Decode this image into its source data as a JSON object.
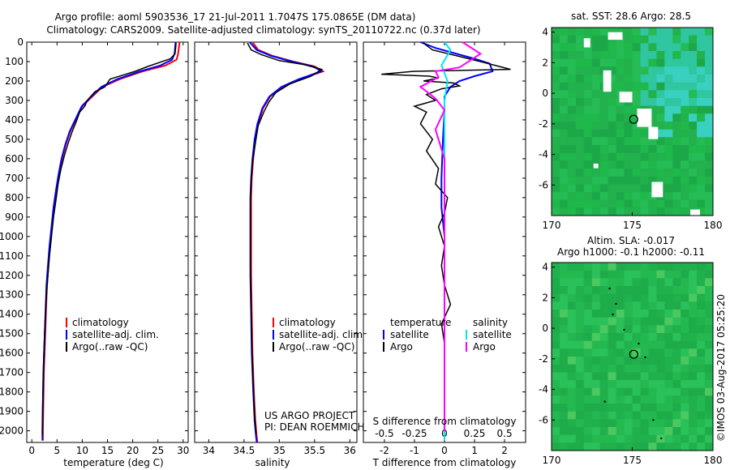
{
  "header": {
    "line1": "Argo profile: aoml 5903536_17 21-Jul-2011 1.7047S 175.0865E (DM data)",
    "line2": "Climatology: CARS2009. Satellite-adjusted climatology: synTS_20110722.nc (0.37d later)"
  },
  "colors": {
    "climatology": "#ff0000",
    "satellite": "#0000ff",
    "argo": "#000000",
    "sal_sat": "#00e5ee",
    "sal_argo": "#ff00ff",
    "map_base": "#22b14c"
  },
  "footer": {
    "project": "US ARGO PROJECT",
    "pi": "PI: DEAN ROEMMICH",
    "watermark": "©IMOS 03-Aug-2017 05:25:20"
  },
  "chart_data": [
    {
      "type": "line",
      "id": "temperature",
      "xlabel": "temperature (deg C)",
      "ylabel": "",
      "xlim": [
        -1,
        31
      ],
      "ylim": [
        2060,
        0
      ],
      "xticks": [
        0,
        5,
        10,
        15,
        20,
        25,
        30
      ],
      "yticks": [
        0,
        100,
        200,
        300,
        400,
        500,
        600,
        700,
        800,
        900,
        1000,
        1100,
        1200,
        1300,
        1400,
        1500,
        1600,
        1700,
        1800,
        1900,
        2000
      ],
      "legend": [
        "climatology",
        "satellite-adj. clim.",
        "Argo(..raw -QC)"
      ],
      "series": [
        {
          "name": "climatology",
          "color": "#ff0000",
          "x": [
            29.3,
            29.0,
            28.7,
            26.5,
            22.0,
            17.5,
            14.0,
            12.0,
            10.0,
            8.7,
            7.6,
            6.7,
            6.0,
            5.4,
            4.9,
            4.4,
            4.0,
            3.6,
            3.3,
            3.0,
            2.8,
            2.6,
            2.4,
            2.3,
            2.2,
            2.2
          ],
          "y": [
            0,
            60,
            90,
            120,
            150,
            190,
            230,
            280,
            330,
            400,
            460,
            530,
            600,
            680,
            760,
            850,
            950,
            1050,
            1150,
            1250,
            1400,
            1550,
            1700,
            1850,
            2000,
            2050
          ]
        },
        {
          "name": "satellite",
          "color": "#0000ff",
          "x": [
            28.5,
            28.3,
            27.8,
            25.5,
            21.5,
            17.0,
            13.8,
            11.8,
            9.9,
            8.6,
            7.5,
            6.6,
            5.9,
            5.3,
            4.8,
            4.3,
            3.9,
            3.5,
            3.2,
            2.9,
            2.7,
            2.5,
            2.3,
            2.2,
            2.1,
            2.1
          ],
          "y": [
            0,
            60,
            90,
            120,
            150,
            190,
            230,
            280,
            330,
            400,
            460,
            530,
            600,
            680,
            760,
            850,
            950,
            1050,
            1150,
            1250,
            1400,
            1550,
            1700,
            1850,
            2000,
            2050
          ]
        },
        {
          "name": "argo",
          "color": "#000000",
          "x": [
            28.6,
            28.4,
            27.5,
            23.0,
            20.5,
            18.0,
            15.5,
            14.5,
            12.5,
            11.0,
            10.5,
            9.5,
            8.8,
            8.0,
            7.2,
            6.5,
            5.8,
            5.2,
            4.8,
            4.3,
            3.9,
            3.5,
            3.2,
            2.9,
            2.6,
            2.4,
            2.2,
            2.1,
            2.1
          ],
          "y": [
            5,
            60,
            85,
            125,
            150,
            170,
            190,
            230,
            255,
            300,
            330,
            360,
            410,
            460,
            520,
            580,
            650,
            730,
            810,
            900,
            1000,
            1100,
            1200,
            1300,
            1450,
            1600,
            1800,
            1950,
            2020
          ]
        }
      ]
    },
    {
      "type": "line",
      "id": "salinity",
      "xlabel": "salinity",
      "ylabel": "",
      "xlim": [
        33.8,
        36.1
      ],
      "ylim": [
        2060,
        0
      ],
      "xticks": [
        34,
        34.5,
        35,
        35.5,
        36
      ],
      "legend": [
        "climatology",
        "satellite-adj. clim.",
        "Argo(..raw -QC)"
      ],
      "series": [
        {
          "name": "climatology",
          "color": "#ff0000",
          "x": [
            34.62,
            34.7,
            34.9,
            35.2,
            35.5,
            35.62,
            35.3,
            35.05,
            34.87,
            34.77,
            34.7,
            34.66,
            34.63,
            34.61,
            34.6,
            34.6,
            34.6,
            34.6,
            34.61,
            34.62,
            34.64,
            34.66,
            34.68,
            34.69
          ],
          "y": [
            0,
            40,
            70,
            100,
            125,
            150,
            190,
            230,
            280,
            340,
            420,
            500,
            600,
            700,
            800,
            900,
            1000,
            1200,
            1400,
            1600,
            1800,
            1950,
            2030,
            2060
          ]
        },
        {
          "name": "satellite",
          "color": "#0000ff",
          "x": [
            34.58,
            34.68,
            34.88,
            35.18,
            35.48,
            35.6,
            35.28,
            35.03,
            34.86,
            34.76,
            34.69,
            34.65,
            34.62,
            34.6,
            34.59,
            34.59,
            34.59,
            34.59,
            34.6,
            34.61,
            34.63,
            34.65,
            34.67,
            34.68
          ],
          "y": [
            0,
            40,
            70,
            100,
            125,
            150,
            190,
            230,
            280,
            340,
            420,
            500,
            600,
            700,
            800,
            900,
            1000,
            1200,
            1400,
            1600,
            1800,
            1950,
            2030,
            2060
          ]
        },
        {
          "name": "argo",
          "color": "#000000",
          "x": [
            34.55,
            34.6,
            34.75,
            35.0,
            35.35,
            35.6,
            35.45,
            35.15,
            34.95,
            34.85,
            34.78,
            34.7,
            34.66,
            34.62,
            34.6,
            34.59,
            34.59,
            34.59,
            34.6,
            34.61,
            34.63,
            34.65,
            34.67
          ],
          "y": [
            5,
            40,
            65,
            95,
            115,
            140,
            175,
            215,
            260,
            310,
            360,
            430,
            520,
            620,
            720,
            830,
            950,
            1150,
            1350,
            1550,
            1750,
            1920,
            2020
          ]
        }
      ]
    },
    {
      "type": "line",
      "id": "difference",
      "xlabel": "T difference from climatology",
      "xlabel2": "S difference from climatology",
      "xlim": [
        -2.7,
        2.7
      ],
      "ylim": [
        2060,
        0
      ],
      "xticks": [
        -2,
        -1,
        0,
        1,
        2
      ],
      "xticks_s": [
        -0.5,
        -0.25,
        0,
        0.25,
        0.5
      ],
      "legend_title_t": "temperature",
      "legend_title_s": "salinity",
      "legend": [
        "satellite",
        "Argo",
        "satellite",
        "Argo"
      ],
      "series": [
        {
          "name": "T satellite",
          "color": "#0000ff",
          "x": [
            -0.8,
            -0.3,
            0.4,
            1.0,
            1.5,
            1.6,
            1.0,
            0.5,
            0.2,
            0.0,
            0.0,
            -0.05,
            -0.1,
            -0.1,
            0.0,
            0.0,
            0.0,
            0.0,
            0.0,
            0.0
          ],
          "y": [
            0,
            30,
            60,
            85,
            110,
            150,
            175,
            200,
            230,
            280,
            350,
            500,
            700,
            850,
            1000,
            1200,
            1400,
            1600,
            1800,
            2050
          ]
        },
        {
          "name": "T argo",
          "color": "#000000",
          "x": [
            -0.7,
            -0.4,
            1.2,
            2.2,
            -1.0,
            -2.1,
            -0.5,
            -0.2,
            -0.7,
            0.3,
            0.5,
            -0.1,
            -0.6,
            -0.3,
            -1.0,
            -0.6,
            -0.8,
            -0.4,
            -0.6,
            -0.2,
            -0.3,
            0.1,
            0.0,
            -0.2,
            0.0,
            -0.1,
            0.0,
            0.2,
            -0.1,
            0.0,
            0.0,
            0.0,
            0.0
          ],
          "y": [
            5,
            40,
            100,
            140,
            150,
            165,
            175,
            185,
            200,
            210,
            225,
            240,
            270,
            300,
            330,
            360,
            420,
            500,
            560,
            650,
            730,
            800,
            880,
            950,
            1050,
            1150,
            1250,
            1350,
            1450,
            1550,
            1700,
            1850,
            2020
          ]
        },
        {
          "name": "S satellite",
          "color": "#00e5ee",
          "x": [
            0.0,
            0.2,
            -0.1,
            0.1,
            0.0,
            0.0,
            0.0,
            0.0,
            0.0,
            0.0,
            0.0,
            0.0,
            0.0
          ],
          "y": [
            0,
            40,
            120,
            200,
            300,
            450,
            650,
            850,
            1050,
            1300,
            1550,
            1800,
            2050
          ]
        },
        {
          "name": "S argo",
          "color": "#ff00ff",
          "x": [
            0.6,
            1.2,
            0.5,
            -0.3,
            -0.2,
            -0.8,
            -0.3,
            0.0,
            -0.3,
            0.0,
            0.0,
            0.0,
            0.0,
            0.0,
            0.0
          ],
          "y": [
            0,
            60,
            130,
            150,
            180,
            230,
            290,
            350,
            450,
            600,
            800,
            1000,
            1300,
            1600,
            2000
          ]
        }
      ]
    },
    {
      "type": "heatmap",
      "id": "sst_map",
      "title": "sat. SST: 28.6 Argo: 28.5",
      "xlim": [
        170,
        180
      ],
      "ylim": [
        -8,
        4.3
      ],
      "xticks": [
        170,
        175,
        180
      ],
      "yticks": [
        4,
        2,
        0,
        -2,
        -4,
        -6
      ],
      "marker": {
        "x": 175.09,
        "y": -1.7
      }
    },
    {
      "type": "heatmap",
      "id": "sla_map",
      "title": "Altim. SLA: -0.017",
      "subtitle": "Argo h1000: -0.1 h2000: -0.11",
      "xlim": [
        170,
        180
      ],
      "ylim": [
        -8,
        4.3
      ],
      "xticks": [
        170,
        175,
        180
      ],
      "yticks": [
        4,
        2,
        0,
        -2,
        -4,
        -6
      ],
      "marker": {
        "x": 175.09,
        "y": -1.7
      }
    }
  ]
}
